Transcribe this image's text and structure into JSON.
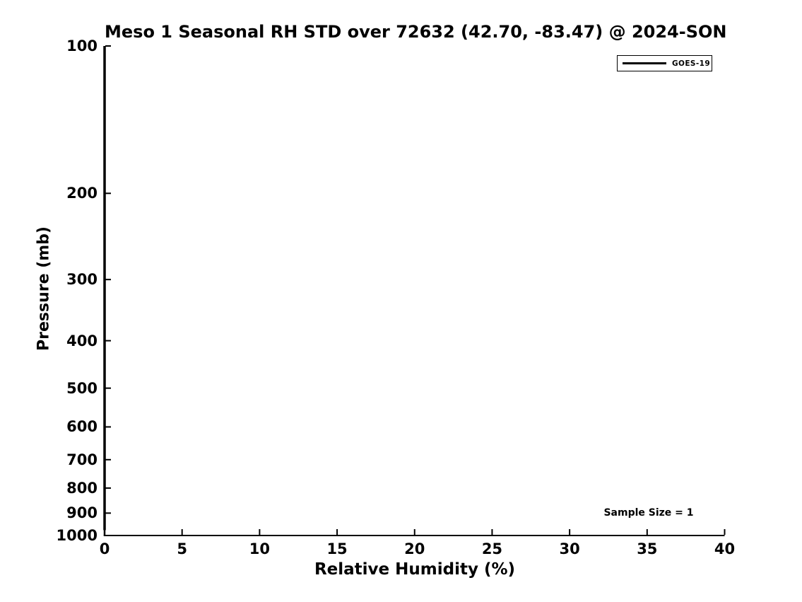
{
  "theme": {
    "background": "#ffffff",
    "foreground": "#000000"
  },
  "chart_data": {
    "type": "line",
    "title": "Meso 1 Seasonal RH STD over 72632 (42.70, -83.47) @ 2024-SON",
    "xlabel": "Relative Humidity (%)",
    "ylabel": "Pressure (mb)",
    "xlim": [
      0,
      40
    ],
    "xticks": [
      0,
      5,
      10,
      15,
      20,
      25,
      30,
      35,
      40
    ],
    "ylim": [
      100,
      1000
    ],
    "yscale": "log",
    "y_inverted": true,
    "yticks": [
      100,
      200,
      300,
      400,
      500,
      600,
      700,
      800,
      900,
      1000
    ],
    "grid": false,
    "legend_position": "upper right",
    "annotation": {
      "text": "Sample Size = 1"
    },
    "series": [
      {
        "name": "GOES-19",
        "color": "#000000",
        "linewidth": 3.5,
        "x": [
          0,
          0,
          0,
          0,
          0,
          0,
          0,
          0,
          0,
          0,
          0,
          0,
          0,
          0,
          0,
          0,
          0,
          0,
          0,
          0
        ],
        "y": [
          100,
          150,
          200,
          250,
          300,
          350,
          400,
          450,
          500,
          550,
          600,
          650,
          700,
          750,
          800,
          850,
          900,
          925,
          950,
          975
        ]
      }
    ]
  }
}
